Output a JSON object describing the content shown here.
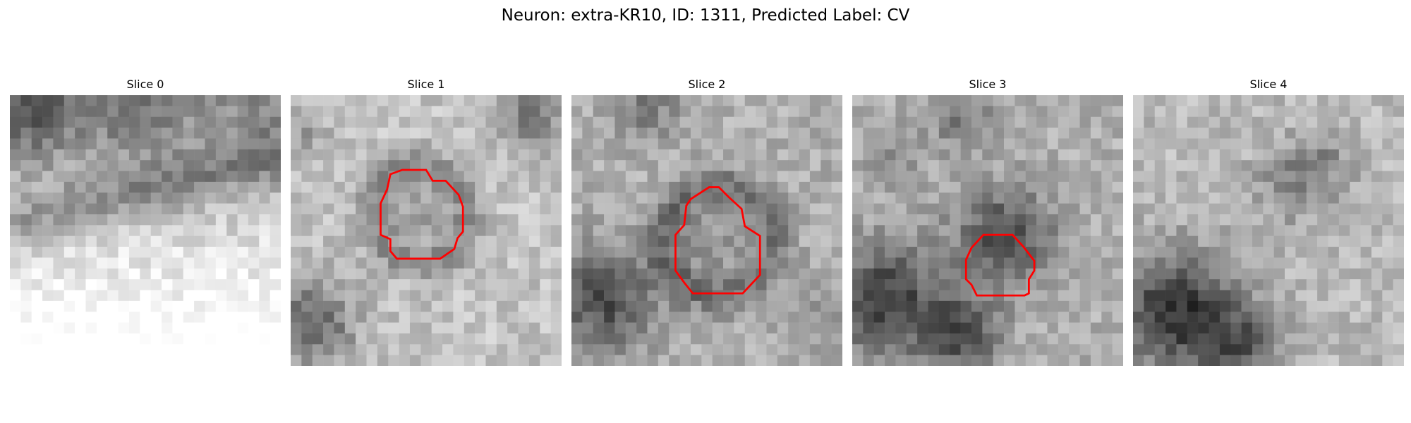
{
  "figure": {
    "title": "Neuron: extra-KR10, ID: 1311, Predicted Label: CV"
  },
  "colors": {
    "contour": "#ff0000",
    "background": "#ffffff"
  },
  "panels": [
    {
      "title": "Slice 0",
      "has_contour": false
    },
    {
      "title": "Slice 1",
      "has_contour": true
    },
    {
      "title": "Slice 2",
      "has_contour": true
    },
    {
      "title": "Slice 3",
      "has_contour": true
    },
    {
      "title": "Slice 4",
      "has_contour": false
    }
  ]
}
